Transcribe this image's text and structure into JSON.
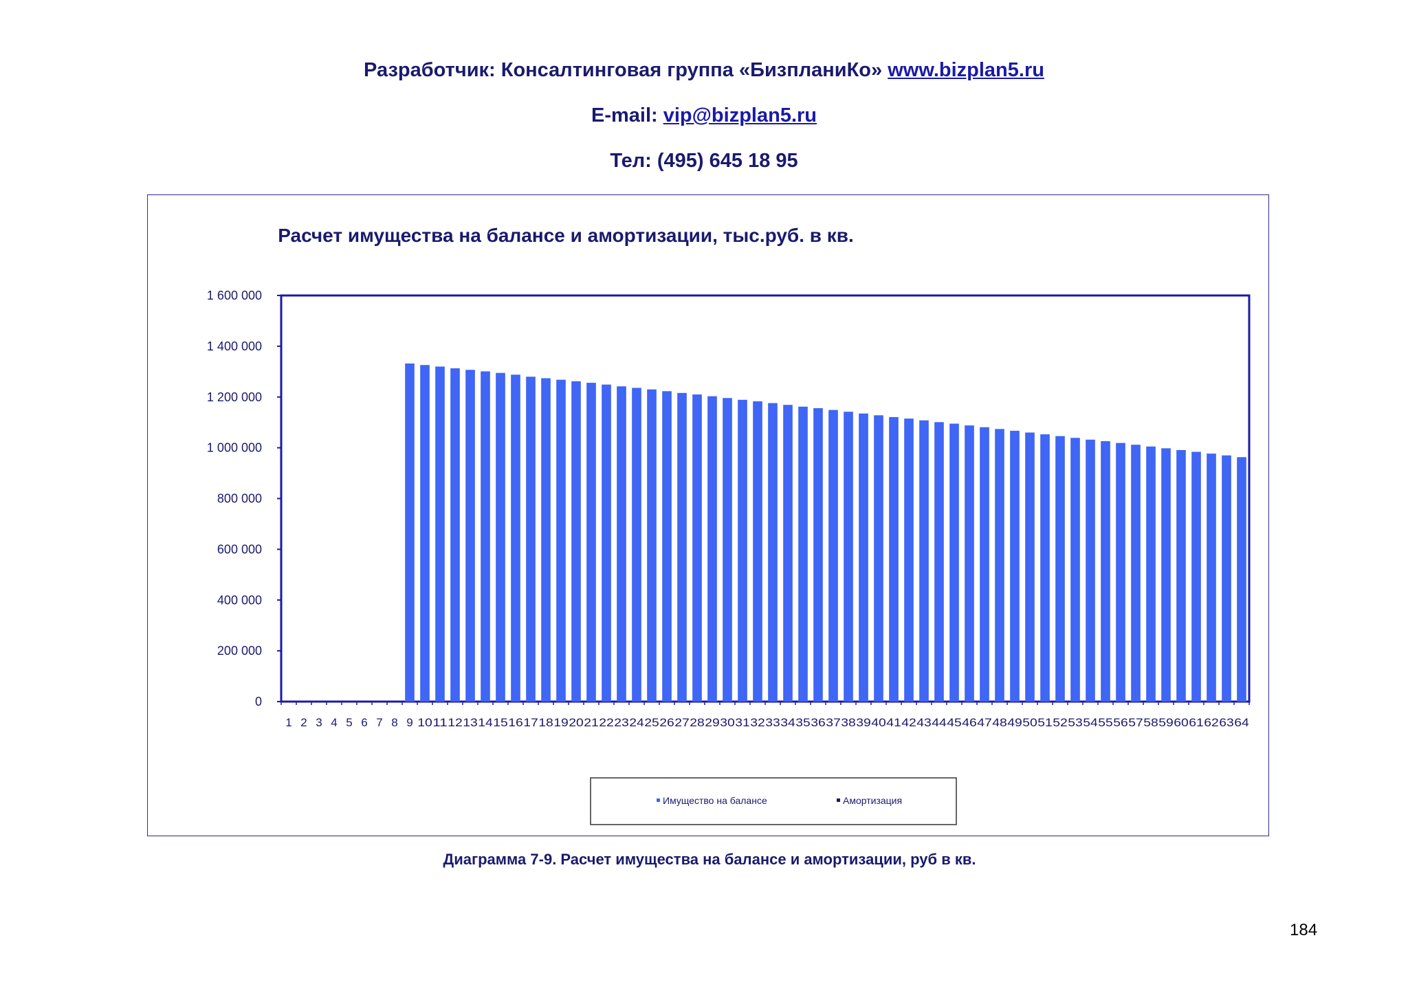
{
  "header": {
    "developer_label": "Разработчик: Консалтинговая группа «БизпланиКо»",
    "website": "www.bizplan5.ru",
    "email_label": "E-mail:",
    "email": "vip@bizplan5.ru",
    "phone": "Тел: (495) 645 18 95"
  },
  "caption": "Диаграмма 7-9. Расчет имущества на балансе и амортизации, руб в кв.",
  "page_number": "184",
  "colors": {
    "bar": "#3f66f5",
    "axis": "#1a1aa8",
    "text": "#1a1a6e"
  },
  "chart_data": {
    "type": "bar",
    "title": "Расчет имущества на балансе и амортизации, тыс.руб. в кв.",
    "xlabel": "",
    "ylabel": "",
    "ylim": [
      0,
      1600000
    ],
    "yticks": [
      0,
      200000,
      400000,
      600000,
      800000,
      1000000,
      1200000,
      1400000,
      1600000
    ],
    "ytick_labels": [
      "0",
      "200 000",
      "400 000",
      "600 000",
      "800 000",
      "1 000 000",
      "1 200 000",
      "1 400 000",
      "1 600 000"
    ],
    "categories": [
      "1",
      "2",
      "3",
      "4",
      "5",
      "6",
      "7",
      "8",
      "9",
      "10",
      "11",
      "12",
      "13",
      "14",
      "15",
      "16",
      "17",
      "18",
      "19",
      "20",
      "21",
      "22",
      "23",
      "24",
      "25",
      "26",
      "27",
      "28",
      "29",
      "30",
      "31",
      "32",
      "33",
      "34",
      "35",
      "36",
      "37",
      "38",
      "39",
      "40",
      "41",
      "42",
      "43",
      "44",
      "45",
      "46",
      "47",
      "48",
      "49",
      "50",
      "51",
      "52",
      "53",
      "54",
      "55",
      "56",
      "57",
      "58",
      "59",
      "60",
      "61",
      "62",
      "63",
      "64"
    ],
    "legend_position": "bottom",
    "grid": false,
    "series": [
      {
        "name": "Имущество на балансе",
        "color": "#3f66f5",
        "values": [
          0,
          0,
          0,
          0,
          0,
          0,
          0,
          0,
          1332000,
          1326000,
          1320000,
          1313000,
          1307000,
          1301000,
          1295000,
          1288000,
          1280000,
          1274000,
          1268000,
          1262000,
          1256000,
          1249000,
          1242000,
          1236000,
          1230000,
          1223000,
          1216000,
          1210000,
          1203000,
          1196000,
          1189000,
          1183000,
          1176000,
          1169000,
          1162000,
          1156000,
          1149000,
          1142000,
          1135000,
          1128000,
          1121000,
          1115000,
          1108000,
          1101000,
          1095000,
          1088000,
          1081000,
          1074000,
          1067000,
          1060000,
          1053000,
          1046000,
          1039000,
          1032000,
          1026000,
          1019000,
          1012000,
          1005000,
          998000,
          991000,
          984000,
          977000,
          970000,
          963000
        ]
      },
      {
        "name": "Амортизация",
        "color": "#1a1a6e",
        "values": [
          0,
          0,
          0,
          0,
          0,
          0,
          0,
          0,
          6000,
          6000,
          6000,
          6000,
          6000,
          6000,
          6000,
          6000,
          6000,
          6000,
          6000,
          6000,
          6000,
          6000,
          6000,
          6000,
          6000,
          6000,
          6000,
          6000,
          6000,
          6000,
          6000,
          6000,
          6000,
          6000,
          6000,
          6000,
          6000,
          6000,
          6000,
          6000,
          6000,
          6000,
          6000,
          6000,
          6000,
          6000,
          6000,
          6000,
          6000,
          6000,
          6000,
          6000,
          6000,
          6000,
          6000,
          6000,
          6000,
          6000,
          6000,
          6000,
          6000,
          6000,
          6000,
          6000
        ]
      }
    ]
  }
}
